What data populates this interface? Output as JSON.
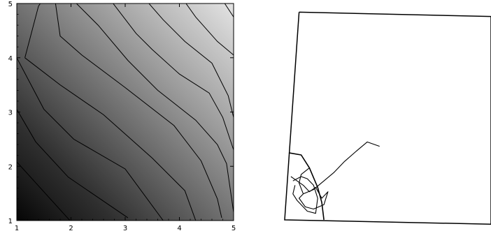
{
  "chart_data": [
    {
      "type": "contour",
      "title": "",
      "xlabel": "",
      "ylabel": "",
      "xlim": [
        1,
        5
      ],
      "ylim": [
        1,
        5
      ],
      "grid": false,
      "x_ticks": [
        "1",
        "2",
        "3",
        "4",
        "5"
      ],
      "y_ticks": [
        "1",
        "2",
        "3",
        "4",
        "5"
      ],
      "levels": 9,
      "contour_shading": [
        "#050505",
        "#1c1c1c",
        "#2f2f2f",
        "#4a4a4a",
        "#656565",
        "#808080",
        "#9a9a9a",
        "#b3b3b3",
        "#cbcbcb",
        "#e4e4e4"
      ],
      "contour_lines": [
        [
          [
            1.0,
            2.08
          ],
          [
            1.98,
            1.0
          ]
        ],
        [
          [
            1.0,
            3.05
          ],
          [
            1.35,
            2.45
          ],
          [
            1.95,
            1.8
          ],
          [
            3.05,
            1.05
          ]
        ],
        [
          [
            1.0,
            4.0
          ],
          [
            1.5,
            3.05
          ],
          [
            2.05,
            2.5
          ],
          [
            3.0,
            1.95
          ],
          [
            3.7,
            1.0
          ]
        ],
        [
          [
            1.15,
            4.0
          ],
          [
            1.4,
            4.95
          ],
          [
            1.5,
            5.1
          ]
        ],
        [
          [
            1.15,
            4.0
          ],
          [
            1.8,
            3.5
          ],
          [
            2.6,
            2.95
          ],
          [
            3.5,
            2.15
          ],
          [
            4.1,
            1.55
          ],
          [
            4.3,
            1.0
          ]
        ],
        [
          [
            1.7,
            5.1
          ],
          [
            1.8,
            4.4
          ],
          [
            2.2,
            4.05
          ],
          [
            3.0,
            3.45
          ],
          [
            3.9,
            2.75
          ],
          [
            4.4,
            2.1
          ],
          [
            4.7,
            1.4
          ],
          [
            4.78,
            1.05
          ]
        ],
        [
          [
            2.0,
            5.1
          ],
          [
            2.5,
            4.6
          ],
          [
            3.05,
            3.95
          ],
          [
            3.6,
            3.4
          ],
          [
            4.3,
            2.85
          ],
          [
            4.7,
            2.4
          ],
          [
            4.87,
            2.05
          ],
          [
            5.0,
            1.15
          ]
        ],
        [
          [
            2.7,
            5.1
          ],
          [
            3.2,
            4.45
          ],
          [
            3.5,
            4.15
          ],
          [
            4.0,
            3.7
          ],
          [
            4.55,
            3.35
          ],
          [
            4.8,
            2.9
          ],
          [
            5.0,
            2.3
          ]
        ],
        [
          [
            3.35,
            5.1
          ],
          [
            3.7,
            4.7
          ],
          [
            4.1,
            4.3
          ],
          [
            4.6,
            3.9
          ],
          [
            4.9,
            3.3
          ],
          [
            5.0,
            2.9
          ]
        ],
        [
          [
            4.05,
            5.1
          ],
          [
            4.3,
            4.75
          ],
          [
            4.7,
            4.3
          ],
          [
            5.0,
            4.05
          ]
        ],
        [
          [
            4.77,
            5.1
          ],
          [
            5.0,
            4.75
          ]
        ]
      ]
    },
    {
      "type": "line",
      "title": "",
      "axes": false,
      "frame": [
        [
          0.07,
          0.96
        ],
        [
          0.0,
          0.0
        ],
        [
          1.0,
          -0.02
        ],
        [
          1.0,
          0.94
        ],
        [
          0.07,
          0.96
        ]
      ],
      "series": [
        {
          "values": [
            [
              0.02,
              0.31
            ],
            [
              0.08,
              0.3
            ],
            [
              0.12,
              0.24
            ],
            [
              0.16,
              0.15
            ],
            [
              0.18,
              0.08
            ],
            [
              0.19,
              0.0
            ]
          ]
        },
        {
          "values": [
            [
              0.12,
              0.24
            ],
            [
              0.08,
              0.21
            ],
            [
              0.07,
              0.17
            ],
            [
              0.09,
              0.12
            ],
            [
              0.14,
              0.14
            ],
            [
              0.19,
              0.18
            ],
            [
              0.24,
              0.22
            ],
            [
              0.29,
              0.27
            ],
            [
              0.35,
              0.32
            ],
            [
              0.4,
              0.36
            ],
            [
              0.46,
              0.34
            ]
          ]
        },
        {
          "values": [
            [
              0.03,
              0.2
            ],
            [
              0.09,
              0.16
            ],
            [
              0.12,
              0.13
            ],
            [
              0.15,
              0.15
            ],
            [
              0.18,
              0.1
            ],
            [
              0.21,
              0.13
            ],
            [
              0.19,
              0.07
            ],
            [
              0.14,
              0.05
            ],
            [
              0.1,
              0.06
            ],
            [
              0.07,
              0.1
            ],
            [
              0.09,
              0.12
            ]
          ]
        },
        {
          "values": [
            [
              0.04,
              0.18
            ],
            [
              0.08,
              0.2
            ],
            [
              0.11,
              0.19
            ],
            [
              0.14,
              0.16
            ],
            [
              0.16,
              0.1
            ],
            [
              0.15,
              0.03
            ],
            [
              0.11,
              0.04
            ],
            [
              0.06,
              0.09
            ],
            [
              0.04,
              0.12
            ],
            [
              0.05,
              0.16
            ]
          ]
        }
      ]
    }
  ]
}
